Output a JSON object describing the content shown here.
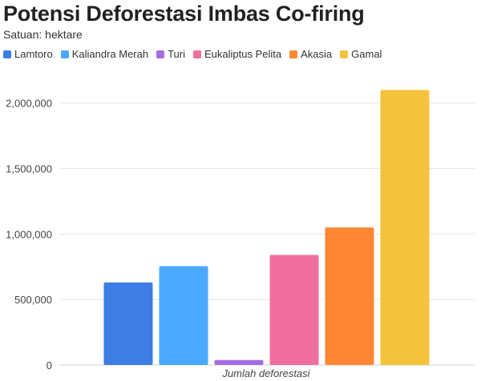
{
  "chart_data": {
    "type": "bar",
    "title": "Potensi Deforestasi Imbas Co-firing",
    "subtitle": "Satuan: hektare",
    "categories": [
      "Jumlah deforestasi"
    ],
    "xlabel": "Jumlah deforestasi",
    "ylabel": "",
    "ylim": [
      0,
      2200000
    ],
    "yticks": [
      0,
      500000,
      1000000,
      1500000,
      2000000
    ],
    "ytick_labels": [
      "0",
      "500,000",
      "1,000,000",
      "1,500,000",
      "2,000,000"
    ],
    "grid": true,
    "legend_position": "top-left",
    "series": [
      {
        "name": "Lamtoro",
        "values": [
          630000
        ],
        "color": "#3d7de4"
      },
      {
        "name": "Kaliandra Merah",
        "values": [
          755000
        ],
        "color": "#4aa8ff"
      },
      {
        "name": "Turi",
        "values": [
          38000
        ],
        "color": "#a66de0"
      },
      {
        "name": "Eukaliptus Pelita",
        "values": [
          840000
        ],
        "color": "#f16f9f"
      },
      {
        "name": "Akasia",
        "values": [
          1050000
        ],
        "color": "#ff8734"
      },
      {
        "name": "Gamal",
        "values": [
          2100000
        ],
        "color": "#f4c23c"
      }
    ]
  }
}
